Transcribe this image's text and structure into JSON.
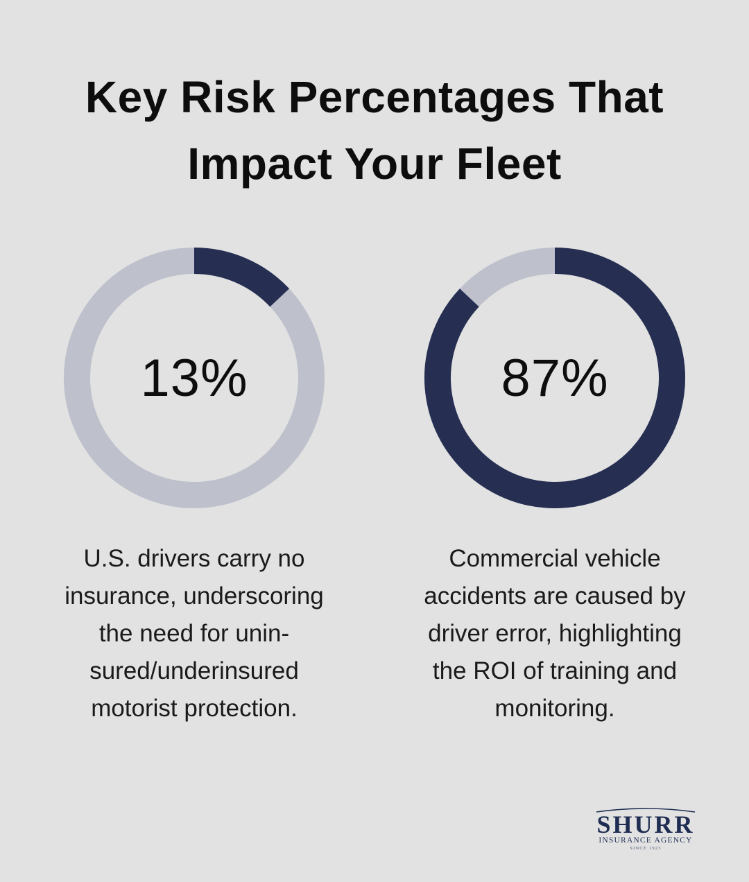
{
  "title": {
    "line1": "Key Risk Percentages That",
    "line2": "Impact Your Fleet"
  },
  "colors": {
    "background": "#e1e2e1",
    "filled": "#262e52",
    "track": "#bec0cc",
    "text": "#0d0d0d",
    "logo": "#1f2d52"
  },
  "chart_data": [
    {
      "type": "pie",
      "title": "",
      "values": [
        13,
        87
      ],
      "categories": [
        "filled",
        "remainder"
      ],
      "center_label": "13%",
      "description_lines": [
        "U.S. drivers carry no",
        "insurance, underscoring",
        "the need for unin-",
        "sured/underinsured",
        "motorist protection."
      ]
    },
    {
      "type": "pie",
      "title": "",
      "values": [
        87,
        13
      ],
      "categories": [
        "filled",
        "remainder"
      ],
      "center_label": "87%",
      "description_lines": [
        "Commercial vehicle",
        "accidents are caused by",
        "driver error, highlighting",
        "the ROI of training and",
        "monitoring."
      ]
    }
  ],
  "logo": {
    "name": "SHURR",
    "subtitle": "INSURANCE AGENCY",
    "since": "SINCE 1923"
  }
}
